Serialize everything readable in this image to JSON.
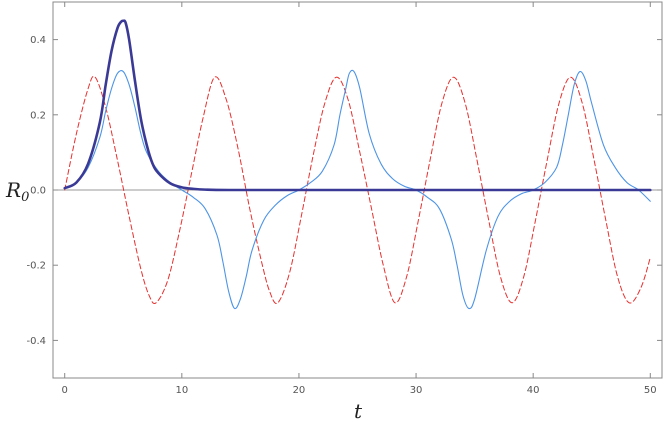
{
  "chart_data": {
    "type": "line",
    "title": "",
    "xlabel": "t",
    "ylabel": "R0",
    "ylabel_main": "R",
    "ylabel_sub": "0",
    "xlim": [
      -1,
      51
    ],
    "ylim": [
      -0.5,
      0.5
    ],
    "xticks": [
      0,
      10,
      20,
      30,
      40,
      50
    ],
    "xtick_labels": [
      "0",
      "10",
      "20",
      "30",
      "40",
      "50"
    ],
    "yticks": [
      -0.4,
      -0.2,
      0.0,
      0.2,
      0.4
    ],
    "ytick_labels": [
      "-0.4",
      "-0.2",
      "0.0",
      "0.2",
      "0.4"
    ],
    "grid": false,
    "legend": "none",
    "zero_line": true,
    "series": [
      {
        "style": "dashed",
        "color": "#e8302e",
        "width": 1,
        "x": [
          0,
          1.0,
          2.0,
          2.6,
          3.5,
          4.5,
          5.5,
          6.5,
          7.2,
          7.8,
          8.8,
          9.8,
          10.8,
          11.8,
          12.8,
          13.8,
          14.8,
          15.8,
          16.8,
          17.5,
          18.2,
          19.2,
          20.2,
          21.2,
          22.2,
          23.2,
          24.2,
          25.2,
          26.2,
          27.2,
          28.2,
          29.2,
          30.2,
          31.2,
          32.2,
          33.2,
          34.2,
          35.2,
          36.2,
          37.2,
          38.2,
          39.2,
          40.2,
          41.2,
          42.2,
          43.2,
          44.2,
          45.2,
          46.2,
          47.2,
          48.2,
          49.2,
          50.0
        ],
        "y": [
          0.0,
          0.15,
          0.27,
          0.3,
          0.22,
          0.08,
          -0.07,
          -0.21,
          -0.28,
          -0.3,
          -0.24,
          -0.11,
          0.04,
          0.19,
          0.3,
          0.24,
          0.11,
          -0.05,
          -0.19,
          -0.27,
          -0.3,
          -0.22,
          -0.07,
          0.09,
          0.23,
          0.3,
          0.24,
          0.1,
          -0.05,
          -0.2,
          -0.3,
          -0.23,
          -0.08,
          0.08,
          0.23,
          0.3,
          0.23,
          0.08,
          -0.08,
          -0.23,
          -0.3,
          -0.23,
          -0.08,
          0.08,
          0.23,
          0.3,
          0.23,
          0.08,
          -0.08,
          -0.23,
          -0.3,
          -0.26,
          -0.18
        ]
      },
      {
        "style": "solid",
        "color": "#4d94e6",
        "width": 1.1,
        "x": [
          0,
          1,
          2,
          3,
          3.5,
          4,
          4.5,
          5.0,
          5.5,
          6,
          6.5,
          7,
          8,
          9,
          10,
          11,
          12,
          13,
          13.5,
          14,
          14.5,
          15,
          15.5,
          16,
          17,
          18,
          19,
          20,
          21,
          22,
          23,
          23.5,
          24,
          24.3,
          24.7,
          25.2,
          26,
          27,
          28,
          29,
          30,
          31,
          32,
          33,
          33.5,
          34,
          34.5,
          35,
          36,
          37,
          38,
          39,
          40,
          41,
          42,
          42.5,
          43,
          43.5,
          44,
          44.5,
          45,
          46,
          47,
          48,
          49,
          50
        ],
        "y": [
          0.005,
          0.02,
          0.06,
          0.14,
          0.21,
          0.27,
          0.31,
          0.315,
          0.28,
          0.22,
          0.15,
          0.1,
          0.05,
          0.02,
          0.0,
          -0.02,
          -0.05,
          -0.12,
          -0.19,
          -0.27,
          -0.315,
          -0.29,
          -0.23,
          -0.16,
          -0.08,
          -0.04,
          -0.015,
          0.0,
          0.02,
          0.05,
          0.12,
          0.2,
          0.27,
          0.31,
          0.315,
          0.27,
          0.15,
          0.07,
          0.03,
          0.01,
          0.0,
          -0.02,
          -0.05,
          -0.13,
          -0.2,
          -0.28,
          -0.315,
          -0.29,
          -0.16,
          -0.07,
          -0.03,
          -0.01,
          0.0,
          0.02,
          0.06,
          0.12,
          0.2,
          0.28,
          0.315,
          0.29,
          0.23,
          0.12,
          0.06,
          0.02,
          0.0,
          -0.03
        ]
      },
      {
        "style": "solid",
        "color": "#3a3a96",
        "width": 2.6,
        "x": [
          0,
          1,
          2,
          3,
          3.5,
          4,
          4.5,
          4.8,
          5.0,
          5.2,
          5.5,
          6,
          6.5,
          7,
          7.5,
          8,
          9,
          10,
          11,
          12,
          14,
          20,
          30,
          40,
          50
        ],
        "y": [
          0.005,
          0.02,
          0.07,
          0.18,
          0.28,
          0.37,
          0.43,
          0.447,
          0.45,
          0.445,
          0.4,
          0.29,
          0.19,
          0.12,
          0.07,
          0.045,
          0.018,
          0.007,
          0.003,
          0.001,
          0.0,
          0.0,
          0.0,
          0.0,
          0.0
        ]
      }
    ]
  }
}
